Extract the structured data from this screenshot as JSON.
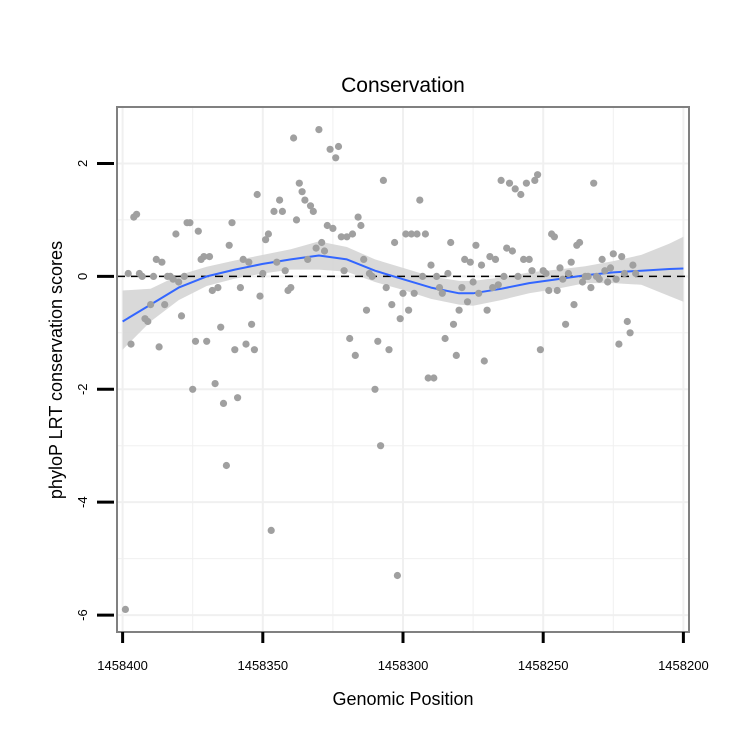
{
  "chart_data": {
    "type": "scatter",
    "title": "Conservation",
    "xlabel": "Genomic Position",
    "ylabel": "phyloP LRT conservation scores",
    "x_reversed": true,
    "xlim": [
      1458402,
      1458198
    ],
    "ylim": [
      -6.3,
      3.0
    ],
    "xticks": [
      1458400,
      1458350,
      1458300,
      1458250,
      1458200
    ],
    "xtick_labels": [
      "1458400",
      "1458350",
      "1458300",
      "1458250",
      "1458200"
    ],
    "yticks": [
      2,
      0,
      -2,
      -4,
      -6
    ],
    "ytick_labels": [
      "2",
      "0",
      "-2",
      "-4",
      "-6"
    ],
    "grid": true,
    "reference_line": {
      "y": 0,
      "style": "dashed"
    },
    "series": [
      {
        "name": "scores",
        "kind": "points",
        "points": [
          [
            1458399,
            -5.9
          ],
          [
            1458398,
            0.05
          ],
          [
            1458397,
            -1.2
          ],
          [
            1458396,
            1.05
          ],
          [
            1458395,
            1.1
          ],
          [
            1458394,
            0.05
          ],
          [
            1458393,
            0.0
          ],
          [
            1458392,
            -0.75
          ],
          [
            1458391,
            -0.8
          ],
          [
            1458390,
            -0.5
          ],
          [
            1458389,
            0.0
          ],
          [
            1458388,
            0.3
          ],
          [
            1458387,
            -1.25
          ],
          [
            1458386,
            0.25
          ],
          [
            1458385,
            -0.5
          ],
          [
            1458384,
            0.0
          ],
          [
            1458383,
            0.0
          ],
          [
            1458382,
            -0.05
          ],
          [
            1458381,
            0.75
          ],
          [
            1458380,
            -0.1
          ],
          [
            1458379,
            -0.7
          ],
          [
            1458378,
            0.0
          ],
          [
            1458377,
            0.95
          ],
          [
            1458376,
            0.95
          ],
          [
            1458375,
            -2.0
          ],
          [
            1458374,
            -1.15
          ],
          [
            1458373,
            0.8
          ],
          [
            1458372,
            0.3
          ],
          [
            1458371,
            0.35
          ],
          [
            1458370,
            -1.15
          ],
          [
            1458369,
            0.35
          ],
          [
            1458368,
            -0.25
          ],
          [
            1458367,
            -1.9
          ],
          [
            1458366,
            -0.2
          ],
          [
            1458365,
            -0.9
          ],
          [
            1458364,
            -2.25
          ],
          [
            1458363,
            -3.35
          ],
          [
            1458362,
            0.55
          ],
          [
            1458361,
            0.95
          ],
          [
            1458360,
            -1.3
          ],
          [
            1458359,
            -2.15
          ],
          [
            1458358,
            -0.2
          ],
          [
            1458357,
            0.3
          ],
          [
            1458356,
            -1.2
          ],
          [
            1458355,
            0.25
          ],
          [
            1458354,
            -0.85
          ],
          [
            1458353,
            -1.3
          ],
          [
            1458352,
            1.45
          ],
          [
            1458351,
            -0.35
          ],
          [
            1458350,
            0.05
          ],
          [
            1458349,
            0.65
          ],
          [
            1458348,
            0.75
          ],
          [
            1458347,
            -4.5
          ],
          [
            1458346,
            1.15
          ],
          [
            1458345,
            0.25
          ],
          [
            1458344,
            1.35
          ],
          [
            1458343,
            1.15
          ],
          [
            1458342,
            0.1
          ],
          [
            1458341,
            -0.25
          ],
          [
            1458340,
            -0.2
          ],
          [
            1458339,
            2.45
          ],
          [
            1458338,
            1.0
          ],
          [
            1458337,
            1.65
          ],
          [
            1458336,
            1.5
          ],
          [
            1458335,
            1.35
          ],
          [
            1458334,
            0.3
          ],
          [
            1458333,
            1.25
          ],
          [
            1458332,
            1.15
          ],
          [
            1458331,
            0.5
          ],
          [
            1458330,
            2.6
          ],
          [
            1458329,
            0.6
          ],
          [
            1458328,
            0.45
          ],
          [
            1458327,
            0.9
          ],
          [
            1458326,
            2.25
          ],
          [
            1458325,
            0.85
          ],
          [
            1458324,
            2.1
          ],
          [
            1458323,
            2.3
          ],
          [
            1458322,
            0.7
          ],
          [
            1458321,
            0.1
          ],
          [
            1458320,
            0.7
          ],
          [
            1458319,
            -1.1
          ],
          [
            1458318,
            0.75
          ],
          [
            1458317,
            -1.4
          ],
          [
            1458316,
            1.05
          ],
          [
            1458315,
            0.9
          ],
          [
            1458314,
            0.3
          ],
          [
            1458313,
            -0.6
          ],
          [
            1458312,
            0.05
          ],
          [
            1458311,
            0.0
          ],
          [
            1458310,
            -2.0
          ],
          [
            1458309,
            -1.15
          ],
          [
            1458308,
            -3.0
          ],
          [
            1458307,
            1.7
          ],
          [
            1458306,
            -0.2
          ],
          [
            1458305,
            -1.3
          ],
          [
            1458304,
            -0.5
          ],
          [
            1458303,
            0.6
          ],
          [
            1458302,
            -5.3
          ],
          [
            1458301,
            -0.75
          ],
          [
            1458300,
            -0.3
          ],
          [
            1458299,
            0.75
          ],
          [
            1458298,
            -0.6
          ],
          [
            1458297,
            0.75
          ],
          [
            1458296,
            -0.3
          ],
          [
            1458295,
            0.75
          ],
          [
            1458294,
            1.35
          ],
          [
            1458293,
            0.0
          ],
          [
            1458292,
            0.75
          ],
          [
            1458291,
            -1.8
          ],
          [
            1458290,
            0.2
          ],
          [
            1458289,
            -1.8
          ],
          [
            1458288,
            0.0
          ],
          [
            1458287,
            -0.2
          ],
          [
            1458286,
            -0.3
          ],
          [
            1458285,
            -1.1
          ],
          [
            1458284,
            0.05
          ],
          [
            1458283,
            0.6
          ],
          [
            1458282,
            -0.85
          ],
          [
            1458281,
            -1.4
          ],
          [
            1458280,
            -0.6
          ],
          [
            1458279,
            -0.2
          ],
          [
            1458278,
            0.3
          ],
          [
            1458277,
            -0.45
          ],
          [
            1458276,
            0.25
          ],
          [
            1458275,
            -0.1
          ],
          [
            1458274,
            0.55
          ],
          [
            1458273,
            -0.3
          ],
          [
            1458272,
            0.2
          ],
          [
            1458271,
            -1.5
          ],
          [
            1458270,
            -0.6
          ],
          [
            1458269,
            0.35
          ],
          [
            1458268,
            -0.2
          ],
          [
            1458267,
            0.3
          ],
          [
            1458266,
            -0.15
          ],
          [
            1458265,
            1.7
          ],
          [
            1458264,
            0.0
          ],
          [
            1458263,
            0.5
          ],
          [
            1458262,
            1.65
          ],
          [
            1458261,
            0.45
          ],
          [
            1458260,
            1.55
          ],
          [
            1458259,
            0.0
          ],
          [
            1458258,
            1.45
          ],
          [
            1458257,
            0.3
          ],
          [
            1458256,
            1.65
          ],
          [
            1458255,
            0.3
          ],
          [
            1458254,
            0.1
          ],
          [
            1458253,
            1.7
          ],
          [
            1458252,
            1.8
          ],
          [
            1458251,
            -1.3
          ],
          [
            1458250,
            0.1
          ],
          [
            1458249,
            0.05
          ],
          [
            1458248,
            -0.25
          ],
          [
            1458247,
            0.75
          ],
          [
            1458246,
            0.7
          ],
          [
            1458245,
            -0.25
          ],
          [
            1458244,
            0.15
          ],
          [
            1458243,
            -0.05
          ],
          [
            1458242,
            -0.85
          ],
          [
            1458241,
            0.05
          ],
          [
            1458240,
            0.25
          ],
          [
            1458239,
            -0.5
          ],
          [
            1458238,
            0.55
          ],
          [
            1458237,
            0.6
          ],
          [
            1458236,
            -0.1
          ],
          [
            1458235,
            0.0
          ],
          [
            1458234,
            0.0
          ],
          [
            1458233,
            -0.2
          ],
          [
            1458232,
            1.65
          ],
          [
            1458231,
            0.0
          ],
          [
            1458230,
            -0.05
          ],
          [
            1458229,
            0.3
          ],
          [
            1458228,
            0.1
          ],
          [
            1458227,
            -0.1
          ],
          [
            1458226,
            0.15
          ],
          [
            1458225,
            0.4
          ],
          [
            1458224,
            -0.05
          ],
          [
            1458223,
            -1.2
          ],
          [
            1458222,
            0.35
          ],
          [
            1458221,
            0.05
          ],
          [
            1458220,
            -0.8
          ],
          [
            1458219,
            -1.0
          ],
          [
            1458218,
            0.2
          ],
          [
            1458217,
            0.05
          ]
        ]
      },
      {
        "name": "smooth fit",
        "kind": "line",
        "points": [
          [
            1458400,
            -0.8
          ],
          [
            1458390,
            -0.5
          ],
          [
            1458380,
            -0.2
          ],
          [
            1458370,
            0.0
          ],
          [
            1458360,
            0.12
          ],
          [
            1458350,
            0.22
          ],
          [
            1458340,
            0.3
          ],
          [
            1458330,
            0.37
          ],
          [
            1458320,
            0.3
          ],
          [
            1458310,
            0.1
          ],
          [
            1458300,
            -0.05
          ],
          [
            1458290,
            -0.2
          ],
          [
            1458280,
            -0.3
          ],
          [
            1458275,
            -0.3
          ],
          [
            1458265,
            -0.22
          ],
          [
            1458255,
            -0.12
          ],
          [
            1458245,
            -0.05
          ],
          [
            1458235,
            0.02
          ],
          [
            1458225,
            0.07
          ],
          [
            1458215,
            0.1
          ],
          [
            1458205,
            0.13
          ],
          [
            1458200,
            0.14
          ]
        ]
      },
      {
        "name": "confidence band",
        "kind": "band",
        "points": [
          [
            1458400,
            -1.3,
            -0.25
          ],
          [
            1458390,
            -0.8,
            -0.22
          ],
          [
            1458380,
            -0.42,
            0.02
          ],
          [
            1458370,
            -0.17,
            0.17
          ],
          [
            1458360,
            -0.04,
            0.28
          ],
          [
            1458350,
            0.05,
            0.38
          ],
          [
            1458340,
            0.12,
            0.48
          ],
          [
            1458330,
            0.12,
            0.62
          ],
          [
            1458320,
            0.08,
            0.52
          ],
          [
            1458310,
            -0.1,
            0.3
          ],
          [
            1458300,
            -0.24,
            0.15
          ],
          [
            1458290,
            -0.4,
            0.0
          ],
          [
            1458280,
            -0.5,
            -0.08
          ],
          [
            1458275,
            -0.52,
            -0.08
          ],
          [
            1458265,
            -0.42,
            -0.02
          ],
          [
            1458255,
            -0.3,
            0.07
          ],
          [
            1458245,
            -0.22,
            0.12
          ],
          [
            1458235,
            -0.12,
            0.18
          ],
          [
            1458225,
            -0.12,
            0.27
          ],
          [
            1458215,
            -0.15,
            0.38
          ],
          [
            1458205,
            -0.35,
            0.58
          ],
          [
            1458200,
            -0.45,
            0.7
          ]
        ]
      }
    ]
  },
  "colors": {
    "points": "#a0a0a0",
    "smooth": "#3366ff",
    "band": "#d5d5d5",
    "grid": "#f0f0f0",
    "panel_border": "#808080",
    "reference_line": "#000000"
  }
}
